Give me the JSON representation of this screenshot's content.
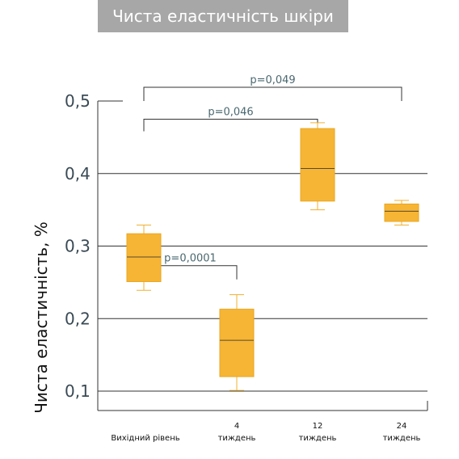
{
  "title": "Чиста еластичність шкіри",
  "colors": {
    "box": "#f6b535",
    "box_edge": "#e9a620",
    "whisker": "#f0b030",
    "grid": "#333333",
    "bracket": "#333333",
    "banner": "#a7a7a7"
  },
  "chart_data": {
    "type": "box",
    "ylabel": "Чиста еластичність, %",
    "ylim": [
      0.075,
      0.525
    ],
    "yticks": [
      "0,1",
      "0,2",
      "0,3",
      "0,4",
      "0,5"
    ],
    "ytick_values": [
      0.1,
      0.2,
      0.3,
      0.4,
      0.5
    ],
    "grid": true,
    "categories": [
      {
        "line1": "",
        "line2": "Вихідний рівень"
      },
      {
        "line1": "4",
        "line2": "тиждень"
      },
      {
        "line1": "12",
        "line2": "тиждень"
      },
      {
        "line1": "24",
        "line2": "тиждень"
      }
    ],
    "boxes": [
      {
        "min": 0.239,
        "q1": 0.251,
        "median": 0.285,
        "q3": 0.317,
        "max": 0.329
      },
      {
        "min": 0.101,
        "q1": 0.12,
        "median": 0.17,
        "q3": 0.213,
        "max": 0.233
      },
      {
        "min": 0.35,
        "q1": 0.362,
        "median": 0.407,
        "q3": 0.462,
        "max": 0.47
      },
      {
        "min": 0.329,
        "q1": 0.334,
        "median": 0.348,
        "q3": 0.358,
        "max": 0.363
      }
    ],
    "comparisons": [
      {
        "from": 0,
        "to": 1,
        "label": "p=0,0001",
        "y": 0.273
      },
      {
        "from": 0,
        "to": 2,
        "label": "p=0,046",
        "y": 0.475
      },
      {
        "from": 0,
        "to": 3,
        "label": "p=0,049",
        "y": 0.519
      }
    ]
  }
}
